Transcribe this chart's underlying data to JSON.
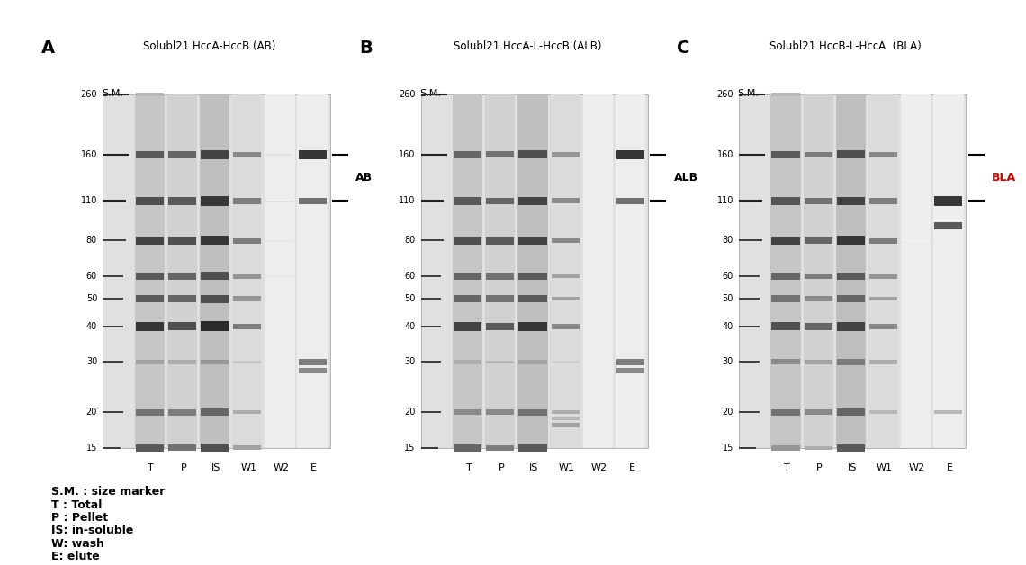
{
  "panels": [
    "A",
    "B",
    "C"
  ],
  "panel_titles": [
    "Solubl21 HccA-HccB (AB)",
    "Solubl21 HccA-L-HccB (ALB)",
    "Solubl21 HccB-L-HccA  (BLA)"
  ],
  "lane_labels": [
    "T",
    "P",
    "IS",
    "W1",
    "W2",
    "E"
  ],
  "size_markers": [
    260,
    160,
    110,
    80,
    60,
    50,
    40,
    30,
    20,
    15
  ],
  "band_labels": [
    "AB",
    "ALB",
    "BLA"
  ],
  "band_label_color": "#000000",
  "band_label_color_C": "#cc0000",
  "legend_lines": [
    "S.M. : size marker",
    "T : Total",
    "P : Pellet",
    "IS: in-soluble",
    "W: wash",
    "E: elute"
  ],
  "background_color": "#ffffff",
  "title_fontsize": 8.5,
  "label_fontsize": 8,
  "marker_fontsize": 7,
  "legend_fontsize": 9,
  "panels_bands": [
    [
      [
        [
          260,
          0.3
        ],
        [
          160,
          0.7
        ],
        [
          110,
          0.75
        ],
        [
          80,
          0.8
        ],
        [
          60,
          0.7
        ],
        [
          50,
          0.7
        ],
        [
          40,
          0.85
        ],
        [
          30,
          0.4
        ],
        [
          20,
          0.6
        ],
        [
          15,
          0.7
        ]
      ],
      [
        [
          160,
          0.65
        ],
        [
          110,
          0.7
        ],
        [
          80,
          0.75
        ],
        [
          60,
          0.65
        ],
        [
          50,
          0.65
        ],
        [
          40,
          0.75
        ],
        [
          30,
          0.35
        ],
        [
          20,
          0.55
        ],
        [
          15,
          0.6
        ]
      ],
      [
        [
          160,
          0.8
        ],
        [
          110,
          0.85
        ],
        [
          80,
          0.85
        ],
        [
          60,
          0.75
        ],
        [
          50,
          0.75
        ],
        [
          40,
          0.9
        ],
        [
          30,
          0.45
        ],
        [
          20,
          0.65
        ],
        [
          15,
          0.75
        ]
      ],
      [
        [
          160,
          0.5
        ],
        [
          110,
          0.55
        ],
        [
          80,
          0.55
        ],
        [
          60,
          0.45
        ],
        [
          50,
          0.45
        ],
        [
          40,
          0.55
        ],
        [
          30,
          0.25
        ],
        [
          20,
          0.35
        ],
        [
          15,
          0.4
        ]
      ],
      [
        [
          160,
          0.12
        ],
        [
          110,
          0.14
        ],
        [
          80,
          0.12
        ],
        [
          60,
          0.1
        ],
        [
          50,
          0.08
        ]
      ],
      [
        [
          160,
          0.85
        ],
        [
          110,
          0.6
        ],
        [
          30,
          0.55
        ],
        [
          28,
          0.5
        ]
      ]
    ],
    [
      [
        [
          260,
          0.25
        ],
        [
          160,
          0.65
        ],
        [
          110,
          0.7
        ],
        [
          80,
          0.75
        ],
        [
          60,
          0.65
        ],
        [
          50,
          0.65
        ],
        [
          40,
          0.8
        ],
        [
          30,
          0.35
        ],
        [
          20,
          0.5
        ],
        [
          15,
          0.65
        ]
      ],
      [
        [
          160,
          0.6
        ],
        [
          110,
          0.65
        ],
        [
          80,
          0.7
        ],
        [
          60,
          0.6
        ],
        [
          50,
          0.6
        ],
        [
          40,
          0.7
        ],
        [
          30,
          0.3
        ],
        [
          20,
          0.5
        ],
        [
          15,
          0.55
        ]
      ],
      [
        [
          160,
          0.75
        ],
        [
          110,
          0.8
        ],
        [
          80,
          0.8
        ],
        [
          60,
          0.7
        ],
        [
          50,
          0.7
        ],
        [
          40,
          0.85
        ],
        [
          30,
          0.4
        ],
        [
          20,
          0.6
        ],
        [
          15,
          0.7
        ]
      ],
      [
        [
          160,
          0.45
        ],
        [
          110,
          0.5
        ],
        [
          80,
          0.5
        ],
        [
          60,
          0.4
        ],
        [
          50,
          0.4
        ],
        [
          40,
          0.5
        ],
        [
          30,
          0.2
        ],
        [
          20,
          0.35
        ],
        [
          19,
          0.3
        ],
        [
          18,
          0.4
        ]
      ],
      [
        [
          160,
          0.08
        ],
        [
          110,
          0.08
        ],
        [
          80,
          0.06
        ]
      ],
      [
        [
          160,
          0.85
        ],
        [
          110,
          0.6
        ],
        [
          30,
          0.55
        ],
        [
          28,
          0.5
        ]
      ]
    ],
    [
      [
        [
          260,
          0.3
        ],
        [
          160,
          0.7
        ],
        [
          110,
          0.72
        ],
        [
          80,
          0.8
        ],
        [
          60,
          0.65
        ],
        [
          50,
          0.6
        ],
        [
          40,
          0.75
        ],
        [
          30,
          0.5
        ],
        [
          20,
          0.6
        ],
        [
          15,
          0.45
        ]
      ],
      [
        [
          160,
          0.55
        ],
        [
          110,
          0.6
        ],
        [
          80,
          0.65
        ],
        [
          60,
          0.55
        ],
        [
          50,
          0.5
        ],
        [
          40,
          0.65
        ],
        [
          30,
          0.4
        ],
        [
          20,
          0.5
        ],
        [
          15,
          0.35
        ]
      ],
      [
        [
          160,
          0.75
        ],
        [
          110,
          0.8
        ],
        [
          80,
          0.85
        ],
        [
          60,
          0.7
        ],
        [
          50,
          0.65
        ],
        [
          40,
          0.8
        ],
        [
          30,
          0.55
        ],
        [
          20,
          0.65
        ],
        [
          15,
          0.7
        ]
      ],
      [
        [
          160,
          0.5
        ],
        [
          110,
          0.55
        ],
        [
          80,
          0.55
        ],
        [
          60,
          0.45
        ],
        [
          50,
          0.4
        ],
        [
          40,
          0.5
        ],
        [
          30,
          0.35
        ],
        [
          20,
          0.3
        ]
      ],
      [
        [
          160,
          0.05
        ],
        [
          80,
          0.04
        ]
      ],
      [
        [
          110,
          0.85
        ],
        [
          90,
          0.7
        ],
        [
          20,
          0.3
        ]
      ]
    ]
  ]
}
